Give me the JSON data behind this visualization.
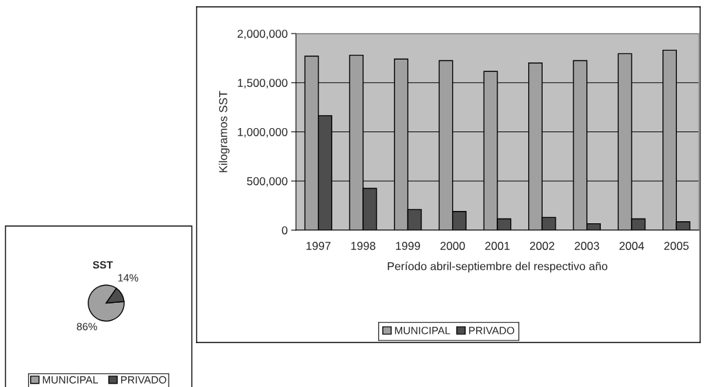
{
  "chart_data": [
    {
      "type": "bar",
      "ylabel": "Kilogramos SST",
      "xlabel": "Período abril-septiembre del respectivo año",
      "categories": [
        "1997",
        "1998",
        "1999",
        "2000",
        "2001",
        "2002",
        "2003",
        "2004",
        "2005"
      ],
      "series": [
        {
          "name": "MUNICIPAL",
          "color": "#a0a0a0",
          "values": [
            1770000,
            1780000,
            1740000,
            1725000,
            1615000,
            1700000,
            1725000,
            1795000,
            1830000
          ]
        },
        {
          "name": "PRIVADO",
          "color": "#4d4d4d",
          "values": [
            1165000,
            425000,
            210000,
            190000,
            115000,
            130000,
            65000,
            115000,
            85000
          ]
        }
      ],
      "ylim": [
        0,
        2000000
      ],
      "yticks": [
        {
          "value": 0,
          "label": "0"
        },
        {
          "value": 500000,
          "label": "500,000"
        },
        {
          "value": 1000000,
          "label": "1,000,000"
        },
        {
          "value": 1500000,
          "label": "1,500,000"
        },
        {
          "value": 2000000,
          "label": "2,000,000"
        }
      ],
      "grid": "y",
      "legend": "bottom"
    },
    {
      "type": "pie",
      "title": "SST",
      "categories": [
        "MUNICIPAL",
        "PRIVADO"
      ],
      "values": [
        86,
        14
      ],
      "colors": [
        "#a0a0a0",
        "#4d4d4d"
      ],
      "value_labels": [
        "86%",
        "14%"
      ],
      "legend": "bottom"
    }
  ]
}
